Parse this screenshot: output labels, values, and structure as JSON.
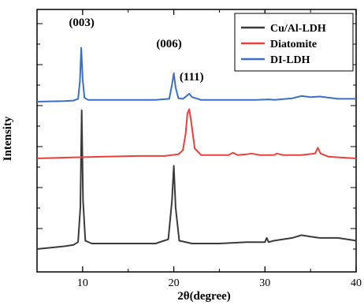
{
  "chart_data": {
    "type": "line",
    "xlabel": "2θ(degree)",
    "ylabel": "Intensity",
    "xlim": [
      5,
      40
    ],
    "xticks": [
      "10",
      "20",
      "30",
      "40"
    ],
    "xtick_values": [
      10,
      20,
      30,
      40
    ],
    "yticks_labeled": false,
    "grid": false,
    "legend_position": "top-right",
    "annotations": [
      {
        "text": "(003)",
        "x": 9.9
      },
      {
        "text": "(006)",
        "x": 20.0
      },
      {
        "text": "(111)",
        "x": 21.7
      }
    ],
    "series": [
      {
        "name": "Cu/Al-LDH",
        "color": "#3a3a3a",
        "x": [
          5,
          8,
          9,
          9.5,
          9.75,
          9.9,
          10.05,
          10.3,
          11,
          13,
          16,
          18,
          19.4,
          19.8,
          20.0,
          20.2,
          20.6,
          22,
          25,
          28,
          30,
          30.2,
          30.4,
          31,
          33,
          34,
          35,
          36,
          38,
          40
        ],
        "y": [
          0.0,
          0.02,
          0.03,
          0.05,
          0.3,
          1.0,
          0.35,
          0.06,
          0.04,
          0.04,
          0.04,
          0.04,
          0.07,
          0.35,
          0.6,
          0.3,
          0.06,
          0.04,
          0.04,
          0.05,
          0.05,
          0.08,
          0.05,
          0.06,
          0.08,
          0.1,
          0.09,
          0.08,
          0.08,
          0.06
        ]
      },
      {
        "name": "Diatomite",
        "color": "#e8413c",
        "x": [
          5,
          8,
          12,
          16,
          19,
          20.5,
          21.0,
          21.3,
          21.5,
          21.7,
          21.9,
          22.3,
          23,
          26,
          26.5,
          27,
          28,
          28.5,
          29.5,
          31,
          31.3,
          32,
          34,
          35.5,
          35.8,
          36.1,
          37,
          40
        ],
        "y": [
          0.0,
          0.01,
          0.02,
          0.03,
          0.03,
          0.05,
          0.1,
          0.3,
          0.55,
          0.6,
          0.45,
          0.12,
          0.04,
          0.04,
          0.07,
          0.04,
          0.05,
          0.06,
          0.04,
          0.04,
          0.06,
          0.04,
          0.04,
          0.06,
          0.13,
          0.06,
          0.02,
          0.0
        ]
      },
      {
        "name": "DI-LDH",
        "color": "#3a6fc4",
        "x": [
          5,
          8,
          9,
          9.5,
          9.7,
          9.85,
          10.0,
          10.2,
          10.6,
          12,
          15,
          18,
          19.5,
          19.8,
          20.0,
          20.2,
          20.5,
          21.0,
          21.4,
          21.7,
          22.0,
          23,
          26,
          29,
          30.5,
          31,
          33,
          34,
          35,
          36,
          38,
          40
        ],
        "y": [
          0.0,
          0.01,
          0.02,
          0.05,
          0.35,
          0.95,
          0.4,
          0.07,
          0.03,
          0.03,
          0.03,
          0.03,
          0.05,
          0.3,
          0.5,
          0.25,
          0.06,
          0.05,
          0.1,
          0.14,
          0.08,
          0.03,
          0.03,
          0.03,
          0.04,
          0.03,
          0.06,
          0.1,
          0.08,
          0.09,
          0.05,
          0.05
        ]
      }
    ]
  }
}
